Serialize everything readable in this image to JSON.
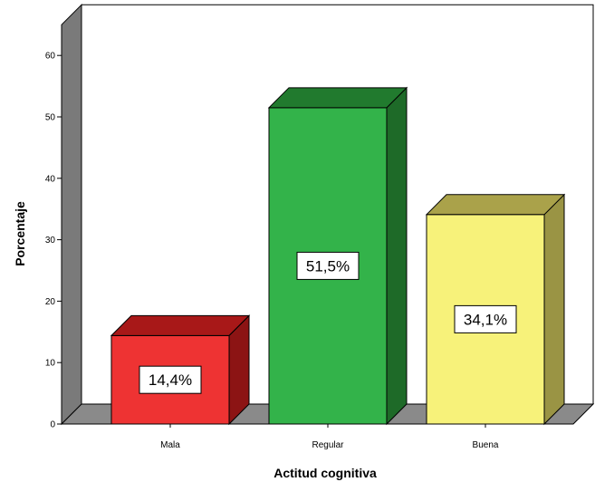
{
  "chart_data": {
    "type": "bar",
    "style": "3d",
    "title": "",
    "xlabel": "Actitud cognitiva",
    "ylabel": "Porcentaje",
    "categories": [
      "Mala",
      "Regular",
      "Buena"
    ],
    "values": [
      14.4,
      51.5,
      34.1
    ],
    "data_labels": [
      "14,4%",
      "51,5%",
      "34,1%"
    ],
    "ylim": [
      0,
      65
    ],
    "yticks": [
      0,
      10,
      20,
      30,
      40,
      50,
      60
    ],
    "grid": false,
    "legend": "none",
    "colors": {
      "bars": [
        {
          "front": "#ee3333",
          "top": "#a81818",
          "side": "#8c1414"
        },
        {
          "front": "#33b34a",
          "top": "#217a2e",
          "side": "#1e6a28"
        },
        {
          "front": "#f7f27a",
          "top": "#aaa24a",
          "side": "#9a9444"
        }
      ],
      "wall_side": "#7a7a7a",
      "floor": "#8a8a8a"
    }
  }
}
